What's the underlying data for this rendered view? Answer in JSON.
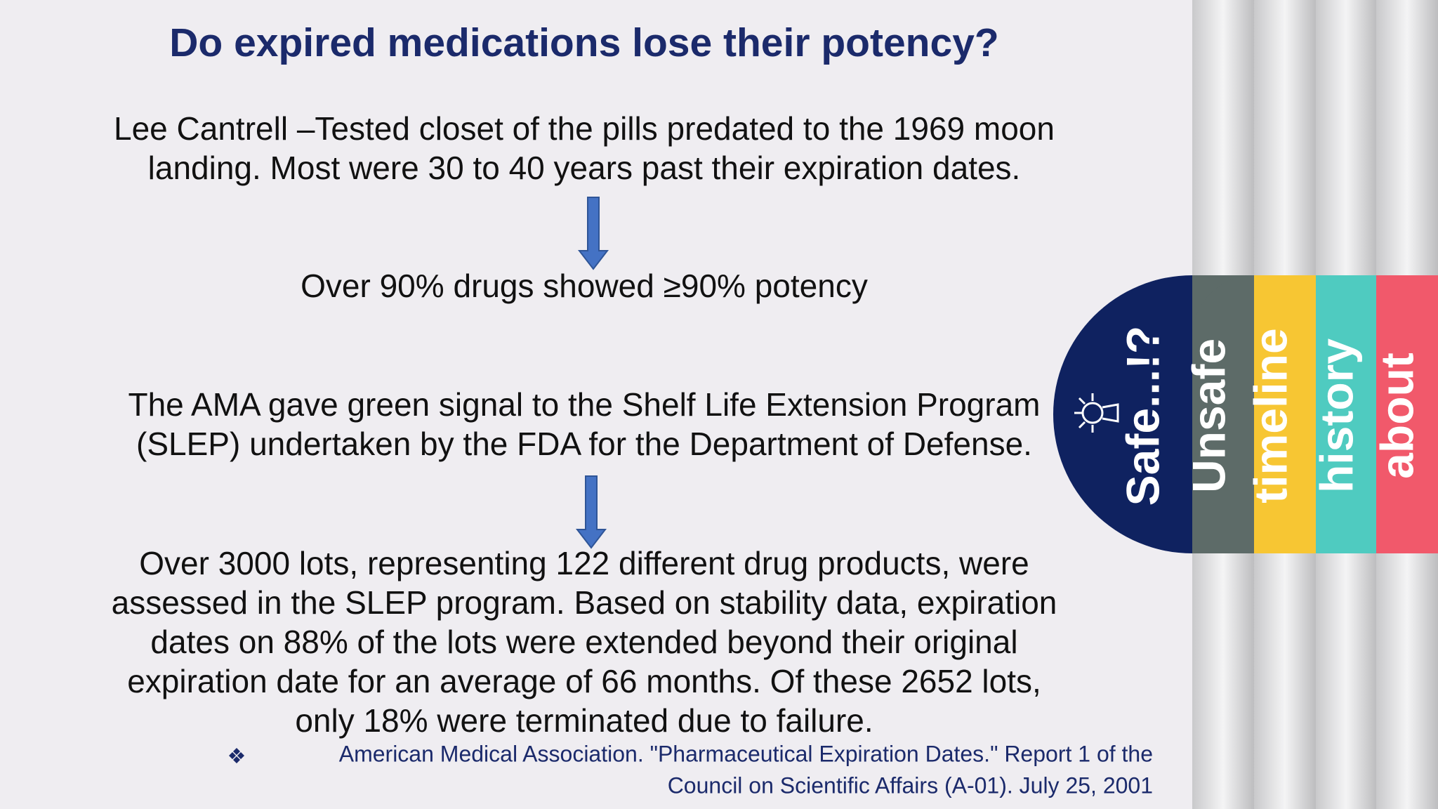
{
  "slide": {
    "title": "Do expired medications lose their potency?",
    "paragraphs": [
      [
        "Lee Cantrell –Tested closet of the pills predated to the 1969 moon",
        "landing. Most were 30 to 40 years past their expiration dates."
      ],
      [
        "Over 90% drugs showed ≥90% potency"
      ],
      [
        "The AMA gave green signal to the Shelf Life Extension Program",
        "(SLEP) undertaken by the FDA for the Department of Defense."
      ],
      [
        "Over 3000 lots, representing 122 different drug products, were",
        "assessed in the SLEP program. Based on stability data, expiration",
        "dates on 88% of the lots were extended beyond their original",
        "expiration date for an average of 66 months. Of these 2652 lots,",
        "only 18% were terminated due to failure."
      ]
    ],
    "citation": [
      "American Medical Association. \"Pharmaceutical Expiration Dates.\" Report 1 of the",
      "Council on Scientific Affairs (A-01). July 25, 2001"
    ],
    "tabs": [
      "Safe...!?",
      "Unsafe",
      "timeline",
      "history",
      "about"
    ]
  }
}
